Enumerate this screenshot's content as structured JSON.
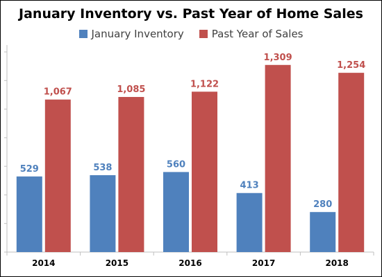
{
  "chart_data": {
    "type": "bar",
    "title": "January Inventory vs. Past Year of Home Sales",
    "categories": [
      "2014",
      "2015",
      "2016",
      "2017",
      "2018"
    ],
    "series": [
      {
        "name": "January Inventory",
        "values": [
          529,
          538,
          560,
          413,
          280
        ],
        "labels": [
          "529",
          "538",
          "560",
          "413",
          "280"
        ],
        "color": "#4f81bd",
        "label_color": "#4f81bd"
      },
      {
        "name": "Past Year of Sales",
        "values": [
          1067,
          1085,
          1122,
          1309,
          1254
        ],
        "labels": [
          "1,067",
          "1,085",
          "1,122",
          "1,309",
          "1,254"
        ],
        "color": "#c0504d",
        "label_color": "#c0504d"
      }
    ],
    "ylim": [
      0,
      1400
    ],
    "y_gridlines": false,
    "legend_position": "top"
  }
}
